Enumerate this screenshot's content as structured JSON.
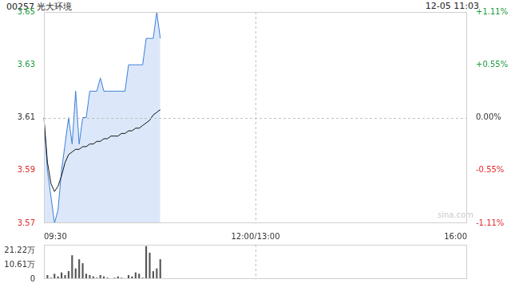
{
  "header": {
    "title": "00257 光大环境",
    "time": "12-05 11:03",
    "watermark": "sina.com"
  },
  "chart_data": [
    {
      "type": "line",
      "categories": [
        "09:30",
        null,
        null,
        null,
        null,
        null,
        null,
        null,
        null,
        null,
        null,
        null,
        null,
        null,
        null,
        null,
        null,
        null,
        null,
        null,
        null,
        null,
        null,
        null,
        null,
        null,
        null,
        null,
        null,
        null,
        null,
        null,
        null,
        null,
        null,
        null,
        null,
        null,
        null,
        null,
        null,
        null,
        null,
        null,
        null,
        null,
        null,
        null,
        null,
        null,
        null,
        null,
        null,
        null,
        null,
        null,
        null,
        null,
        null,
        null,
        "12:00/13:00",
        null,
        null,
        null,
        null,
        null,
        null,
        null,
        null,
        null,
        null,
        null,
        null,
        null,
        null,
        null,
        null,
        null,
        null,
        null,
        null,
        null,
        null,
        null,
        null,
        null,
        null,
        null,
        null,
        null,
        null,
        null,
        null,
        null,
        null,
        null,
        null,
        null,
        null,
        null,
        null,
        null,
        null,
        null,
        null,
        null,
        null,
        null,
        null,
        null,
        null,
        null,
        null,
        null,
        null,
        null,
        null,
        null,
        null,
        null,
        "16:00"
      ],
      "series": [
        {
          "type": "area",
          "color": "#3b7ddd",
          "marker": "none",
          "values": [
            3.61,
            3.59,
            3.58,
            3.57,
            3.575,
            3.59,
            3.6,
            3.61,
            3.6,
            3.62,
            3.6,
            3.61,
            3.61,
            3.62,
            3.62,
            3.62,
            3.625,
            3.62,
            3.62,
            3.62,
            3.62,
            3.62,
            3.62,
            3.62,
            3.63,
            3.63,
            3.63,
            3.63,
            3.63,
            3.64,
            3.64,
            3.64,
            3.65,
            3.64,
            null,
            null,
            null,
            null,
            null,
            null,
            null,
            null,
            null,
            null,
            null,
            null,
            null,
            null,
            null,
            null,
            null,
            null,
            null,
            null,
            null,
            null,
            null,
            null,
            null,
            null,
            null,
            null,
            null,
            null,
            null,
            null,
            null,
            null,
            null,
            null,
            null,
            null,
            null,
            null,
            null,
            null,
            null,
            null,
            null,
            null,
            null,
            null,
            null,
            null,
            null,
            null,
            null,
            null,
            null,
            null,
            null,
            null,
            null,
            null,
            null,
            null,
            null,
            null,
            null,
            null,
            null,
            null,
            null,
            null,
            null,
            null,
            null,
            null,
            null,
            null,
            null,
            null,
            null,
            null,
            null,
            null,
            null,
            null,
            null,
            null,
            null
          ]
        },
        {
          "type": "line",
          "color": "#111111",
          "marker": "none",
          "values": [
            3.61,
            3.593,
            3.585,
            3.582,
            3.584,
            3.588,
            3.593,
            3.596,
            3.597,
            3.598,
            3.598,
            3.599,
            3.599,
            3.6,
            3.6,
            3.601,
            3.601,
            3.602,
            3.602,
            3.603,
            3.603,
            3.603,
            3.604,
            3.604,
            3.605,
            3.605,
            3.606,
            3.606,
            3.607,
            3.608,
            3.609,
            3.611,
            3.612,
            3.613,
            null,
            null,
            null,
            null,
            null,
            null,
            null,
            null,
            null,
            null,
            null,
            null,
            null,
            null,
            null,
            null,
            null,
            null,
            null,
            null,
            null,
            null,
            null,
            null,
            null,
            null,
            null,
            null,
            null,
            null,
            null,
            null,
            null,
            null,
            null,
            null,
            null,
            null,
            null,
            null,
            null,
            null,
            null,
            null,
            null,
            null,
            null,
            null,
            null,
            null,
            null,
            null,
            null,
            null,
            null,
            null,
            null,
            null,
            null,
            null,
            null,
            null,
            null,
            null,
            null,
            null,
            null,
            null,
            null,
            null,
            null,
            null,
            null,
            null,
            null,
            null,
            null,
            null,
            null,
            null,
            null,
            null,
            null,
            null,
            null,
            null,
            null
          ]
        }
      ],
      "baseline": 3.61,
      "ylim": [
        3.57,
        3.65
      ],
      "yticks": [
        3.57,
        3.59,
        3.61,
        3.63,
        3.65
      ],
      "y2lim": [
        -1.108,
        1.108
      ],
      "y2ticks": [
        {
          "value": -1.108,
          "label": "-1.11%"
        },
        {
          "value": -0.554,
          "label": "-0.55%"
        },
        {
          "value": 0,
          "label": "0.00%"
        },
        {
          "value": 0.554,
          "label": "+0.55%"
        },
        {
          "value": 1.108,
          "label": "+1.11%"
        }
      ],
      "grid": false
    },
    {
      "type": "bar",
      "categories": [
        "09:30",
        null,
        null,
        null,
        null,
        null,
        null,
        null,
        null,
        null,
        null,
        null,
        null,
        null,
        null,
        null,
        null,
        null,
        null,
        null,
        null,
        null,
        null,
        null,
        null,
        null,
        null,
        null,
        null,
        null,
        null,
        null,
        null,
        null,
        null,
        null,
        null,
        null,
        null,
        null,
        null,
        null,
        null,
        null,
        null,
        null,
        null,
        null,
        null,
        null,
        null,
        null,
        null,
        null,
        null,
        null,
        null,
        null,
        null,
        null,
        "12:00/13:00",
        null,
        null,
        null,
        null,
        null,
        null,
        null,
        null,
        null,
        null,
        null,
        null,
        null,
        null,
        null,
        null,
        null,
        null,
        null,
        null,
        null,
        null,
        null,
        null,
        null,
        null,
        null,
        null,
        null,
        null,
        null,
        null,
        null,
        null,
        null,
        null,
        null,
        null,
        null,
        null,
        null,
        null,
        null,
        null,
        null,
        null,
        null,
        null,
        null,
        null,
        null,
        null,
        null,
        null,
        null,
        null,
        null,
        null,
        null,
        "16:00"
      ],
      "values": [
        2,
        3,
        1,
        4,
        2,
        5,
        3,
        6,
        18,
        8,
        15,
        12,
        4,
        3,
        2,
        1,
        3,
        2,
        1,
        0.5,
        1,
        2,
        1,
        0.5,
        3,
        2,
        5,
        4,
        1,
        25,
        20,
        6,
        8,
        15,
        null,
        null,
        null,
        null,
        null,
        null,
        null,
        null,
        null,
        null,
        null,
        null,
        null,
        null,
        null,
        null,
        null,
        null,
        null,
        null,
        null,
        null,
        null,
        null,
        null,
        null,
        null,
        null,
        null,
        null,
        null,
        null,
        null,
        null,
        null,
        null,
        null,
        null,
        null,
        null,
        null,
        null,
        null,
        null,
        null,
        null,
        null,
        null,
        null,
        null,
        null,
        null,
        null,
        null,
        null,
        null,
        null,
        null,
        null,
        null,
        null,
        null,
        null,
        null,
        null,
        null,
        null,
        null,
        null,
        null,
        null,
        null,
        null,
        null,
        null,
        null,
        null,
        null,
        null,
        null,
        null,
        null,
        null,
        null,
        null,
        null,
        null
      ],
      "color": "#555555",
      "ylim": [
        0,
        26
      ],
      "yticks": [
        0,
        {
          "value": 10.61,
          "label": "10.61万"
        },
        {
          "value": 21.22,
          "label": "21.22万"
        }
      ],
      "grid": false,
      "tick_labels": "y"
    }
  ]
}
